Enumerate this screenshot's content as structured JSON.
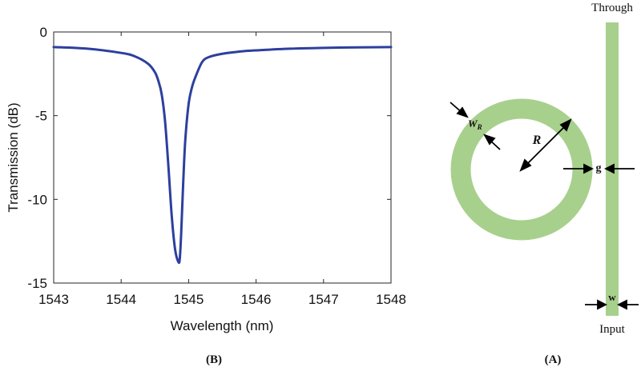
{
  "chart_data": {
    "type": "line",
    "title": "",
    "xlabel": "Wavelength (nm)",
    "ylabel": "Transmission (dB)",
    "xlim": [
      1543,
      1548
    ],
    "ylim": [
      -15,
      0
    ],
    "xticks": [
      1543,
      1544,
      1545,
      1546,
      1547,
      1548
    ],
    "yticks": [
      0,
      -5,
      -10,
      -15
    ],
    "xtick_labels": [
      "1543",
      "1544",
      "1545",
      "1546",
      "1547",
      "1548"
    ],
    "ytick_labels": [
      "0",
      "-5",
      "-10",
      "-15"
    ],
    "grid": false,
    "series": [
      {
        "color": "#2d3f9e",
        "x": [
          1543.0,
          1543.5,
          1544.0,
          1544.2,
          1544.4,
          1544.5,
          1544.55,
          1544.6,
          1544.65,
          1544.7,
          1544.75,
          1544.8,
          1544.85,
          1544.87,
          1544.89,
          1544.92,
          1544.95,
          1545.0,
          1545.05,
          1545.1,
          1545.2,
          1545.3,
          1545.5,
          1545.8,
          1546.0,
          1546.5,
          1547.0,
          1547.5,
          1548.0
        ],
        "y": [
          -0.9,
          -1.0,
          -1.25,
          -1.45,
          -1.9,
          -2.4,
          -2.9,
          -3.7,
          -5.3,
          -8.0,
          -11.0,
          -13.0,
          -13.75,
          -13.5,
          -12.0,
          -9.0,
          -6.5,
          -4.3,
          -3.3,
          -2.7,
          -1.8,
          -1.5,
          -1.3,
          -1.15,
          -1.1,
          -1.0,
          -0.95,
          -0.92,
          -0.9
        ]
      }
    ]
  },
  "panels": {
    "chart_label": "(B)",
    "diagram_label": "(A)"
  },
  "diagram": {
    "through_label": "Through",
    "input_label": "Input",
    "radius_label": "R",
    "gap_label": "g",
    "width_label": "w",
    "ring_width_label_main": "W",
    "ring_width_label_sub": "R",
    "ring_color": "#a8d08d",
    "waveguide_color": "#a8d08d"
  }
}
